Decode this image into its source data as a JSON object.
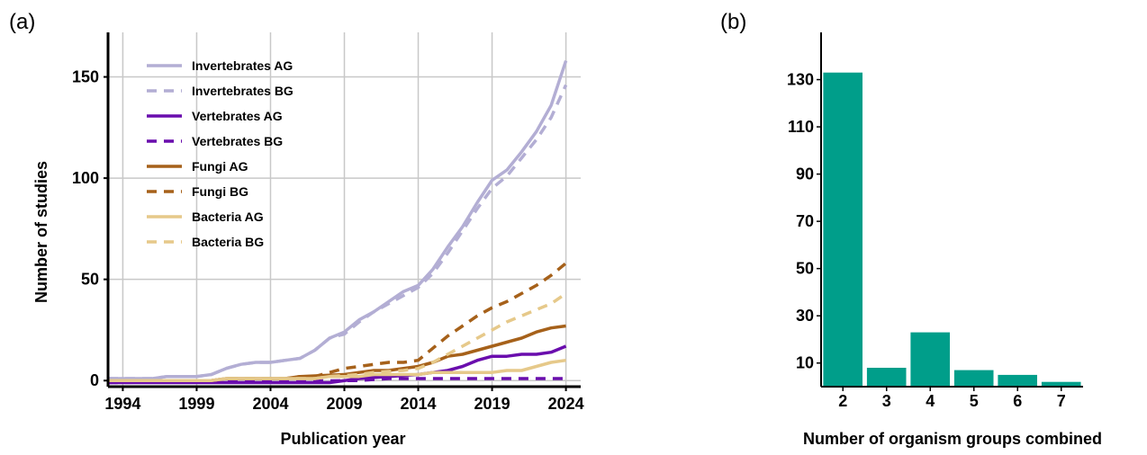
{
  "panel_a_label": "(a)",
  "panel_b_label": "(b)",
  "colors": {
    "invertebrates": "#b3aed4",
    "vertebrates": "#6a0dad",
    "fungi": "#a6611a",
    "bacteria": "#e6c98a",
    "bars": "#009e8a",
    "grid": "#c8c8c8"
  },
  "chart_data": [
    {
      "type": "line",
      "title": "",
      "xlabel": "Publication year",
      "ylabel": "Number of studies",
      "xlim": [
        1993,
        2025
      ],
      "ylim": [
        -3,
        172
      ],
      "xticks": [
        1994,
        1999,
        2004,
        2009,
        2014,
        2019,
        2024
      ],
      "yticks": [
        0,
        50,
        100,
        150
      ],
      "grid": true,
      "legend_position": "top-left",
      "series": [
        {
          "name": "Invertebrates AG",
          "color": "#b3aed4",
          "dash": "solid",
          "x": [
            1993,
            1996,
            1997,
            1999,
            2000,
            2001,
            2002,
            2003,
            2004,
            2005,
            2006,
            2007,
            2008,
            2009,
            2010,
            2011,
            2012,
            2013,
            2014,
            2015,
            2016,
            2017,
            2018,
            2019,
            2020,
            2021,
            2022,
            2023,
            2024
          ],
          "y": [
            1,
            1,
            2,
            2,
            3,
            6,
            8,
            9,
            9,
            10,
            11,
            15,
            21,
            24,
            30,
            34,
            39,
            44,
            47,
            55,
            66,
            76,
            88,
            99,
            104,
            113,
            123,
            136,
            158
          ]
        },
        {
          "name": "Invertebrates BG",
          "color": "#b3aed4",
          "dash": "dashed",
          "x": [
            1993,
            1996,
            1997,
            1999,
            2000,
            2001,
            2002,
            2003,
            2004,
            2005,
            2006,
            2007,
            2008,
            2009,
            2010,
            2011,
            2012,
            2013,
            2014,
            2015,
            2016,
            2017,
            2018,
            2019,
            2020,
            2021,
            2022,
            2023,
            2024
          ],
          "y": [
            1,
            1,
            2,
            2,
            3,
            6,
            8,
            9,
            9,
            10,
            11,
            15,
            21,
            23,
            29,
            34,
            38,
            42,
            46,
            53,
            63,
            74,
            85,
            95,
            101,
            110,
            119,
            130,
            146
          ]
        },
        {
          "name": "Vertebrates AG",
          "color": "#6a0dad",
          "dash": "solid",
          "x": [
            1993,
            2008,
            2010,
            2012,
            2014,
            2015,
            2016,
            2017,
            2018,
            2019,
            2020,
            2021,
            2022,
            2023,
            2024
          ],
          "y": [
            -1,
            -1,
            1,
            2,
            3,
            4,
            5,
            7,
            10,
            12,
            12,
            13,
            13,
            14,
            17
          ]
        },
        {
          "name": "Vertebrates BG",
          "color": "#6a0dad",
          "dash": "dashed",
          "x": [
            1993,
            2010,
            2012,
            2024
          ],
          "y": [
            -1,
            0,
            1,
            1
          ]
        },
        {
          "name": "Fungi AG",
          "color": "#a6611a",
          "dash": "solid",
          "x": [
            1993,
            2000,
            2001,
            2005,
            2006,
            2009,
            2010,
            2011,
            2012,
            2013,
            2014,
            2015,
            2016,
            2017,
            2018,
            2019,
            2020,
            2021,
            2022,
            2023,
            2024
          ],
          "y": [
            0,
            0,
            1,
            1,
            2,
            3,
            4,
            5,
            5,
            6,
            7,
            9,
            12,
            13,
            15,
            17,
            19,
            21,
            24,
            26,
            27
          ]
        },
        {
          "name": "Fungi BG",
          "color": "#a6611a",
          "dash": "dashed",
          "x": [
            1993,
            2000,
            2001,
            2005,
            2006,
            2007,
            2008,
            2009,
            2010,
            2011,
            2012,
            2013,
            2014,
            2015,
            2016,
            2017,
            2018,
            2019,
            2020,
            2021,
            2022,
            2023,
            2024
          ],
          "y": [
            0,
            0,
            1,
            1,
            2,
            2,
            4,
            6,
            7,
            8,
            9,
            9,
            10,
            16,
            22,
            27,
            32,
            36,
            39,
            43,
            47,
            52,
            58
          ]
        },
        {
          "name": "Bacteria AG",
          "color": "#e6c98a",
          "dash": "solid",
          "x": [
            1993,
            2000,
            2001,
            2007,
            2008,
            2010,
            2011,
            2014,
            2015,
            2019,
            2020,
            2021,
            2022,
            2023,
            2024
          ],
          "y": [
            0,
            0,
            1,
            1,
            2,
            2,
            3,
            3,
            4,
            4,
            5,
            5,
            7,
            9,
            10
          ]
        },
        {
          "name": "Bacteria BG",
          "color": "#e6c98a",
          "dash": "dashed",
          "x": [
            1993,
            2000,
            2001,
            2007,
            2008,
            2010,
            2011,
            2013,
            2014,
            2015,
            2016,
            2017,
            2018,
            2019,
            2020,
            2021,
            2022,
            2023,
            2024
          ],
          "y": [
            0,
            0,
            1,
            1,
            2,
            3,
            4,
            5,
            6,
            9,
            13,
            17,
            21,
            25,
            29,
            32,
            35,
            38,
            43
          ]
        }
      ]
    },
    {
      "type": "bar",
      "title": "",
      "xlabel": "Number of organism groups combined",
      "ylabel": "",
      "categories": [
        "2",
        "3",
        "4",
        "5",
        "6",
        "7"
      ],
      "values": [
        133,
        8,
        23,
        7,
        5,
        2
      ],
      "ylim": [
        0,
        150
      ],
      "yticks": [
        10,
        30,
        50,
        70,
        90,
        110,
        130
      ],
      "grid": false
    }
  ]
}
